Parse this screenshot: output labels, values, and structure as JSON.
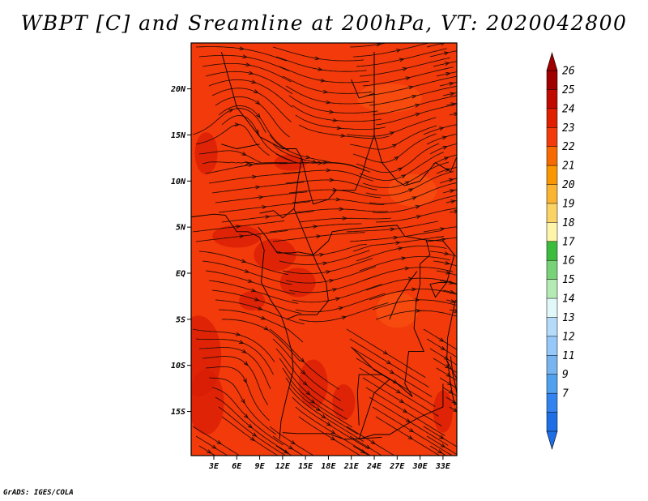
{
  "title": "WBPT [C] and Sreamline at 200hPa, VT: 2020042800",
  "credit": "GrADS: IGES/COLA",
  "map": {
    "fill_color_main": "#f23a0a",
    "fill_color_dark": "#d81c06",
    "fill_color_light": "#fa5a14",
    "streamline_color": "#1a0a05",
    "latitudes": [
      {
        "label": "20N",
        "value": 20
      },
      {
        "label": "15N",
        "value": 15
      },
      {
        "label": "10N",
        "value": 10
      },
      {
        "label": "5N",
        "value": 5
      },
      {
        "label": "EQ",
        "value": 0
      },
      {
        "label": "5S",
        "value": -5
      },
      {
        "label": "10S",
        "value": -10
      },
      {
        "label": "15S",
        "value": -15
      }
    ],
    "longitudes": [
      {
        "label": "3E",
        "value": 3
      },
      {
        "label": "6E",
        "value": 6
      },
      {
        "label": "9E",
        "value": 9
      },
      {
        "label": "12E",
        "value": 12
      },
      {
        "label": "15E",
        "value": 15
      },
      {
        "label": "18E",
        "value": 18
      },
      {
        "label": "21E",
        "value": 21
      },
      {
        "label": "24E",
        "value": 24
      },
      {
        "label": "27E",
        "value": 27
      },
      {
        "label": "30E",
        "value": 30
      },
      {
        "label": "33E",
        "value": 33
      }
    ]
  },
  "colorbar": {
    "levels": [
      {
        "label": "26",
        "color": "#a00000"
      },
      {
        "label": "25",
        "color": "#c00a00"
      },
      {
        "label": "24",
        "color": "#e01e00"
      },
      {
        "label": "23",
        "color": "#f23a0a"
      },
      {
        "label": "22",
        "color": "#f76a00"
      },
      {
        "label": "21",
        "color": "#fa9600"
      },
      {
        "label": "20",
        "color": "#fbb432"
      },
      {
        "label": "19",
        "color": "#fbd264"
      },
      {
        "label": "18",
        "color": "#fff5aa"
      },
      {
        "label": "17",
        "color": "#3cbc3c"
      },
      {
        "label": "16",
        "color": "#78d278"
      },
      {
        "label": "15",
        "color": "#b4eab4"
      },
      {
        "label": "14",
        "color": "#e1f8f8"
      },
      {
        "label": "13",
        "color": "#b4dcfa"
      },
      {
        "label": "12",
        "color": "#96c8fa"
      },
      {
        "label": "11",
        "color": "#78b4f0"
      },
      {
        "label": "9",
        "color": "#50a0f0"
      },
      {
        "label": "7",
        "color": "#3282f0"
      },
      {
        "label": "",
        "color": "#1e6ee6"
      }
    ]
  }
}
